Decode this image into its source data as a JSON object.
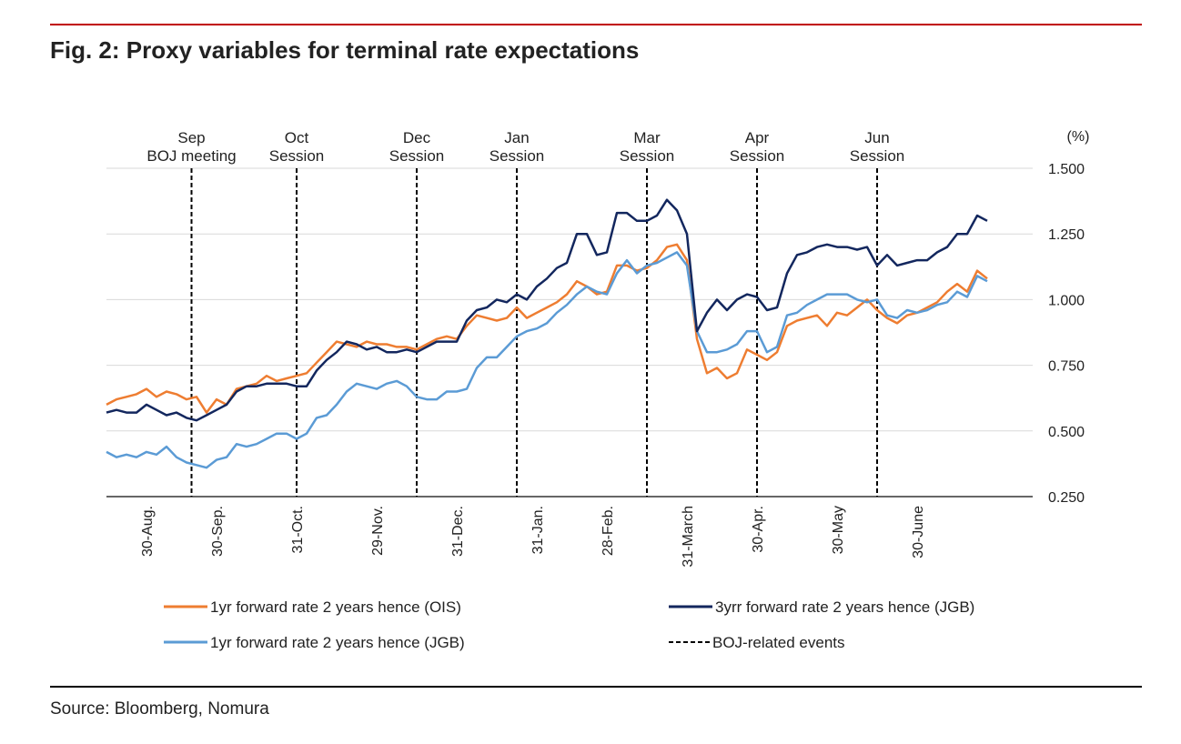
{
  "chart_data": {
    "type": "line",
    "title": "Fig. 2: Proxy variables for terminal rate expectations",
    "y_unit": "(%)",
    "source": "Source: Bloomberg, Nomura",
    "categories": [
      null,
      null,
      null,
      null,
      "30-Aug.",
      null,
      null,
      null,
      null,
      null,
      null,
      "30-Sep.",
      null,
      null,
      null,
      null,
      null,
      null,
      null,
      "31-Oct.",
      null,
      null,
      null,
      null,
      null,
      null,
      null,
      "29-Nov.",
      null,
      null,
      null,
      null,
      null,
      null,
      null,
      "31-Dec.",
      null,
      null,
      null,
      null,
      null,
      null,
      null,
      "31-Jan.",
      null,
      null,
      null,
      null,
      null,
      null,
      "28-Feb.",
      null,
      null,
      null,
      null,
      null,
      null,
      null,
      "31-March",
      null,
      null,
      null,
      null,
      null,
      null,
      "30-Apr.",
      null,
      null,
      null,
      null,
      null,
      null,
      null,
      "30-May",
      null,
      null,
      null,
      null,
      null,
      null,
      null,
      "30-June",
      null,
      null,
      null,
      null,
      null,
      null,
      null
    ],
    "ylim": [
      0.25,
      1.5
    ],
    "yticks": [
      {
        "value": 0.25,
        "label": "0.250"
      },
      {
        "value": 0.5,
        "label": "0.500"
      },
      {
        "value": 0.75,
        "label": "0.750"
      },
      {
        "value": 1,
        "label": "1.000"
      },
      {
        "value": 1.25,
        "label": "1.250"
      },
      {
        "value": 1.5,
        "label": "1.500"
      }
    ],
    "grid": true,
    "series": [
      {
        "name": "1yr forward rate 2 years hence (OIS)",
        "color": "#ee7d31",
        "values": [
          0.6,
          0.62,
          0.63,
          0.64,
          0.66,
          0.63,
          0.65,
          0.64,
          0.62,
          0.63,
          0.57,
          0.62,
          0.6,
          0.66,
          0.67,
          0.68,
          0.71,
          0.69,
          0.7,
          0.71,
          0.72,
          0.76,
          0.8,
          0.84,
          0.83,
          0.82,
          0.84,
          0.83,
          0.83,
          0.82,
          0.82,
          0.81,
          0.83,
          0.85,
          0.86,
          0.85,
          0.9,
          0.94,
          0.93,
          0.92,
          0.93,
          0.97,
          0.93,
          0.95,
          0.97,
          0.99,
          1.02,
          1.07,
          1.05,
          1.02,
          1.03,
          1.13,
          1.13,
          1.11,
          1.12,
          1.15,
          1.2,
          1.21,
          1.15,
          0.85,
          0.72,
          0.74,
          0.7,
          0.72,
          0.81,
          0.79,
          0.77,
          0.8,
          0.9,
          0.92,
          0.93,
          0.94,
          0.9,
          0.95,
          0.94,
          0.97,
          1.0,
          0.96,
          0.93,
          0.91,
          0.94,
          0.95,
          0.97,
          0.99,
          1.03,
          1.06,
          1.03,
          1.11,
          1.08
        ]
      },
      {
        "name": "3yrr forward rate 2 years hence (JGB)",
        "color": "#13275e",
        "values": [
          0.57,
          0.58,
          0.57,
          0.57,
          0.6,
          0.58,
          0.56,
          0.57,
          0.55,
          0.54,
          0.56,
          0.58,
          0.6,
          0.65,
          0.67,
          0.67,
          0.68,
          0.68,
          0.68,
          0.67,
          0.67,
          0.73,
          0.77,
          0.8,
          0.84,
          0.83,
          0.81,
          0.82,
          0.8,
          0.8,
          0.81,
          0.8,
          0.82,
          0.84,
          0.84,
          0.84,
          0.92,
          0.96,
          0.97,
          1.0,
          0.99,
          1.02,
          1.0,
          1.05,
          1.08,
          1.12,
          1.14,
          1.25,
          1.25,
          1.17,
          1.18,
          1.33,
          1.33,
          1.3,
          1.3,
          1.32,
          1.38,
          1.34,
          1.25,
          0.88,
          0.95,
          1.0,
          0.96,
          1.0,
          1.02,
          1.01,
          0.96,
          0.97,
          1.1,
          1.17,
          1.18,
          1.2,
          1.21,
          1.2,
          1.2,
          1.19,
          1.2,
          1.13,
          1.17,
          1.13,
          1.14,
          1.15,
          1.15,
          1.18,
          1.2,
          1.25,
          1.25,
          1.32,
          1.3
        ]
      },
      {
        "name": "1yr forward rate 2 years hence (JGB)",
        "color": "#5b9bd5",
        "values": [
          0.42,
          0.4,
          0.41,
          0.4,
          0.42,
          0.41,
          0.44,
          0.4,
          0.38,
          0.37,
          0.36,
          0.39,
          0.4,
          0.45,
          0.44,
          0.45,
          0.47,
          0.49,
          0.49,
          0.47,
          0.49,
          0.55,
          0.56,
          0.6,
          0.65,
          0.68,
          0.67,
          0.66,
          0.68,
          0.69,
          0.67,
          0.63,
          0.62,
          0.62,
          0.65,
          0.65,
          0.66,
          0.74,
          0.78,
          0.78,
          0.82,
          0.86,
          0.88,
          0.89,
          0.91,
          0.95,
          0.98,
          1.02,
          1.05,
          1.03,
          1.02,
          1.1,
          1.15,
          1.1,
          1.13,
          1.14,
          1.16,
          1.18,
          1.13,
          0.88,
          0.8,
          0.8,
          0.81,
          0.83,
          0.88,
          0.88,
          0.8,
          0.82,
          0.94,
          0.95,
          0.98,
          1.0,
          1.02,
          1.02,
          1.02,
          1.0,
          0.99,
          1.0,
          0.94,
          0.93,
          0.96,
          0.95,
          0.96,
          0.98,
          0.99,
          1.03,
          1.01,
          1.09,
          1.07
        ]
      }
    ],
    "events_legend": "BOJ-related events",
    "events": [
      {
        "label": [
          "Sep",
          "BOJ meeting"
        ],
        "at": 8.5
      },
      {
        "label": [
          "Oct",
          "Session"
        ],
        "at": 19
      },
      {
        "label": [
          "Dec",
          "Session"
        ],
        "at": 31
      },
      {
        "label": [
          "Jan",
          "Session"
        ],
        "at": 41
      },
      {
        "label": [
          "Mar",
          "Session"
        ],
        "at": 54
      },
      {
        "label": [
          "Apr",
          "Session"
        ],
        "at": 65
      },
      {
        "label": [
          "Jun",
          "Session"
        ],
        "at": 77
      }
    ]
  }
}
